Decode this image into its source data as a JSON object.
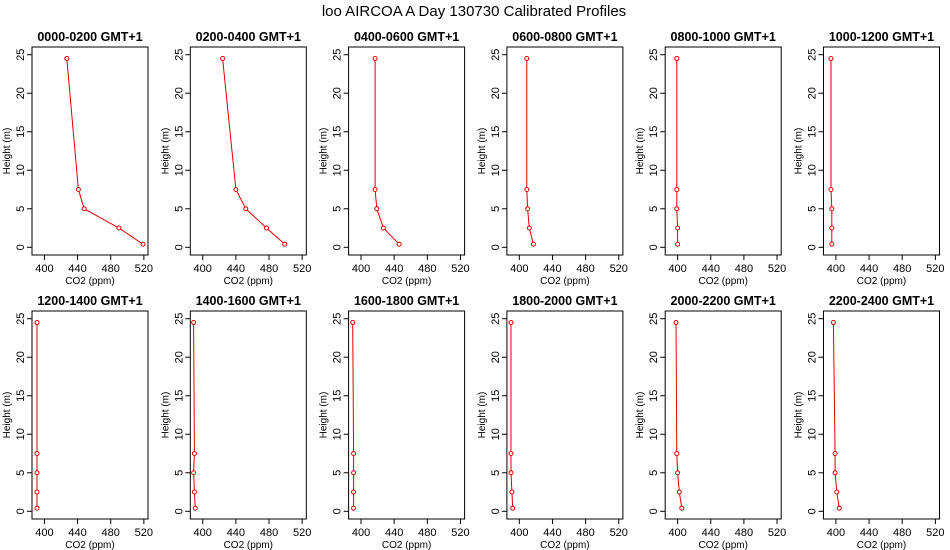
{
  "figure": {
    "title": "loo AIRCOA A  Day 130730  Calibrated Profiles",
    "series_color": "#e00000"
  },
  "chart_data": [
    {
      "type": "line",
      "title": "0000-0200 GMT+1",
      "xlabel": "CO2 (ppm)",
      "ylabel": "Height (m)",
      "xlim": [
        385,
        525
      ],
      "ylim": [
        0,
        25
      ],
      "xticks": [
        400,
        440,
        480,
        520
      ],
      "yticks": [
        0,
        5,
        10,
        15,
        20,
        25
      ],
      "series": [
        {
          "x": [
            427,
            441,
            448,
            490,
            519
          ],
          "y": [
            24.5,
            7.5,
            5,
            2.5,
            0.4
          ]
        }
      ]
    },
    {
      "type": "line",
      "title": "0200-0400 GMT+1",
      "xlabel": "CO2 (ppm)",
      "ylabel": "Height (m)",
      "xlim": [
        385,
        525
      ],
      "ylim": [
        0,
        25
      ],
      "xticks": [
        400,
        440,
        480,
        520
      ],
      "yticks": [
        0,
        5,
        10,
        15,
        20,
        25
      ],
      "series": [
        {
          "x": [
            424,
            440,
            452,
            477,
            499
          ],
          "y": [
            24.5,
            7.5,
            5,
            2.5,
            0.4
          ]
        }
      ]
    },
    {
      "type": "line",
      "title": "0400-0600 GMT+1",
      "xlabel": "CO2 (ppm)",
      "ylabel": "Height (m)",
      "xlim": [
        385,
        525
      ],
      "ylim": [
        0,
        25
      ],
      "xticks": [
        400,
        440,
        480,
        520
      ],
      "yticks": [
        0,
        5,
        10,
        15,
        20,
        25
      ],
      "series": [
        {
          "x": [
            417,
            417,
            419,
            427,
            446
          ],
          "y": [
            24.5,
            7.5,
            5,
            2.5,
            0.4
          ]
        }
      ]
    },
    {
      "type": "line",
      "title": "0600-0800 GMT+1",
      "xlabel": "CO2 (ppm)",
      "ylabel": "Height (m)",
      "xlim": [
        385,
        525
      ],
      "ylim": [
        0,
        25
      ],
      "xticks": [
        400,
        440,
        480,
        520
      ],
      "yticks": [
        0,
        5,
        10,
        15,
        20,
        25
      ],
      "series": [
        {
          "x": [
            409,
            409,
            410,
            412,
            417
          ],
          "y": [
            24.5,
            7.5,
            5,
            2.5,
            0.4
          ]
        }
      ]
    },
    {
      "type": "line",
      "title": "0800-1000 GMT+1",
      "xlabel": "CO2 (ppm)",
      "ylabel": "Height (m)",
      "xlim": [
        385,
        525
      ],
      "ylim": [
        0,
        25
      ],
      "xticks": [
        400,
        440,
        480,
        520
      ],
      "yticks": [
        0,
        5,
        10,
        15,
        20,
        25
      ],
      "series": [
        {
          "x": [
            399,
            399,
            399,
            400,
            400
          ],
          "y": [
            24.5,
            7.5,
            5,
            2.5,
            0.4
          ]
        }
      ]
    },
    {
      "type": "line",
      "title": "1000-1200 GMT+1",
      "xlabel": "CO2 (ppm)",
      "ylabel": "Height (m)",
      "xlim": [
        385,
        525
      ],
      "ylim": [
        0,
        25
      ],
      "xticks": [
        400,
        440,
        480,
        520
      ],
      "yticks": [
        0,
        5,
        10,
        15,
        20,
        25
      ],
      "series": [
        {
          "x": [
            394,
            394,
            395,
            395,
            395
          ],
          "y": [
            24.5,
            7.5,
            5,
            2.5,
            0.4
          ]
        }
      ]
    },
    {
      "type": "line",
      "title": "1200-1400 GMT+1",
      "xlabel": "CO2 (ppm)",
      "ylabel": "Height (m)",
      "xlim": [
        385,
        525
      ],
      "ylim": [
        0,
        25
      ],
      "xticks": [
        400,
        440,
        480,
        520
      ],
      "yticks": [
        0,
        5,
        10,
        15,
        20,
        25
      ],
      "series": [
        {
          "x": [
            391,
            391,
            391,
            391,
            391
          ],
          "y": [
            24.5,
            7.5,
            5,
            2.5,
            0.4
          ]
        }
      ]
    },
    {
      "type": "line",
      "title": "1400-1600 GMT+1",
      "xlabel": "CO2 (ppm)",
      "ylabel": "Height (m)",
      "xlim": [
        385,
        525
      ],
      "ylim": [
        0,
        25
      ],
      "xticks": [
        400,
        440,
        480,
        520
      ],
      "yticks": [
        0,
        5,
        10,
        15,
        20,
        25
      ],
      "series": [
        {
          "x": [
            389,
            390,
            389,
            390,
            391
          ],
          "y": [
            24.5,
            7.5,
            5,
            2.5,
            0.4
          ]
        }
      ]
    },
    {
      "type": "line",
      "title": "1600-1800 GMT+1",
      "xlabel": "CO2 (ppm)",
      "ylabel": "Height (m)",
      "xlim": [
        385,
        525
      ],
      "ylim": [
        0,
        25
      ],
      "xticks": [
        400,
        440,
        480,
        520
      ],
      "yticks": [
        0,
        5,
        10,
        15,
        20,
        25
      ],
      "series": [
        {
          "x": [
            390,
            391,
            391,
            391,
            391
          ],
          "y": [
            24.5,
            7.5,
            5,
            2.5,
            0.4
          ]
        }
      ]
    },
    {
      "type": "line",
      "title": "1800-2000 GMT+1",
      "xlabel": "CO2 (ppm)",
      "ylabel": "Height (m)",
      "xlim": [
        385,
        525
      ],
      "ylim": [
        0,
        25
      ],
      "xticks": [
        400,
        440,
        480,
        520
      ],
      "yticks": [
        0,
        5,
        10,
        15,
        20,
        25
      ],
      "series": [
        {
          "x": [
            390,
            390,
            390,
            391,
            392
          ],
          "y": [
            24.5,
            7.5,
            5,
            2.5,
            0.4
          ]
        }
      ]
    },
    {
      "type": "line",
      "title": "2000-2200 GMT+1",
      "xlabel": "CO2 (ppm)",
      "ylabel": "Height (m)",
      "xlim": [
        385,
        525
      ],
      "ylim": [
        0,
        25
      ],
      "xticks": [
        400,
        440,
        480,
        520
      ],
      "yticks": [
        0,
        5,
        10,
        15,
        20,
        25
      ],
      "series": [
        {
          "x": [
            398,
            399,
            400,
            402,
            405
          ],
          "y": [
            24.5,
            7.5,
            5,
            2.5,
            0.4
          ]
        }
      ]
    },
    {
      "type": "line",
      "title": "2200-2400 GMT+1",
      "xlabel": "CO2 (ppm)",
      "ylabel": "Height (m)",
      "xlim": [
        385,
        525
      ],
      "ylim": [
        0,
        25
      ],
      "xticks": [
        400,
        440,
        480,
        520
      ],
      "yticks": [
        0,
        5,
        10,
        15,
        20,
        25
      ],
      "series": [
        {
          "x": [
            397,
            399,
            399,
            401,
            404
          ],
          "y": [
            24.5,
            7.5,
            5,
            2.5,
            0.4
          ]
        }
      ]
    }
  ]
}
